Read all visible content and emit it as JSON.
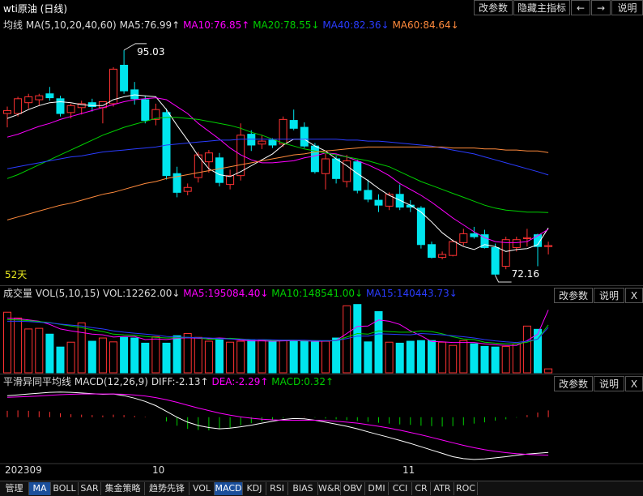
{
  "header": {
    "title": "wti原油 (日线)",
    "buttons": {
      "params": "改参数",
      "hide_indicator": "隐藏主指标",
      "left": "←",
      "right": "→",
      "help": "说明"
    }
  },
  "ma_legend": {
    "name": "均线",
    "params": "MA(5,10,20,40,60)",
    "ma5": "MA5:76.99↑",
    "ma10": "MA10:76.85↑",
    "ma20": "MA20:78.55↓",
    "ma40": "MA40:82.36↓",
    "ma60": "MA60:84.64↓"
  },
  "vol_legend": {
    "name": "成交量",
    "params": "VOL(5,10,15)",
    "vol": "VOL:12262.00↓",
    "ma5": "MA5:195084.40↓",
    "ma10": "MA10:148541.00↓",
    "ma15": "MA15:140443.73↓",
    "buttons": {
      "params": "改参数",
      "help": "说明",
      "close": "X"
    }
  },
  "macd_legend": {
    "name": "平滑异同平均线",
    "params": "MACD(12,26,9)",
    "diff": "DIFF:-2.13↑",
    "dea": "DEA:-2.29↑",
    "macd": "MACD:0.32↑",
    "buttons": {
      "params": "改参数",
      "help": "说明",
      "close": "X"
    }
  },
  "axis": {
    "year_month": "202309",
    "m10": "10",
    "m11": "11"
  },
  "days_label": "52天",
  "colors": {
    "up": "#ff3232",
    "down": "#00e5ee",
    "ma5": "#ffffff",
    "ma10": "#ff00ff",
    "ma20": "#00d000",
    "ma40": "#2a3cff",
    "ma60": "#ff8a3c",
    "dea": "#ff00ff",
    "diff": "#ffffff"
  },
  "tabs": [
    "管理",
    "MA",
    "BOLL",
    "SAR",
    "集金策略",
    "趋势先锋",
    "VOL",
    "MACD",
    "KDJ",
    "RSI",
    "BIAS",
    "W&R",
    "OBV",
    "DMI",
    "CCI",
    "CR",
    "ATR",
    "ROC"
  ],
  "active_tabs": [
    "MA",
    "MACD"
  ],
  "chart_data": {
    "type": "candlestick",
    "title": "wti原油 (日线)",
    "price_range": [
      71.5,
      96.5
    ],
    "annotations": {
      "high": 95.03,
      "low": 72.16
    },
    "candles": [
      {
        "o": 88.6,
        "h": 89.3,
        "l": 87.2,
        "c": 88.9
      },
      {
        "o": 88.6,
        "h": 90.3,
        "l": 88.3,
        "c": 90.1
      },
      {
        "o": 89.7,
        "h": 90.6,
        "l": 89.1,
        "c": 90.3
      },
      {
        "o": 90.0,
        "h": 90.6,
        "l": 89.4,
        "c": 90.4
      },
      {
        "o": 90.6,
        "h": 91.3,
        "l": 89.9,
        "c": 90.2
      },
      {
        "o": 90.1,
        "h": 90.4,
        "l": 88.3,
        "c": 88.6
      },
      {
        "o": 88.7,
        "h": 89.6,
        "l": 88.1,
        "c": 89.4
      },
      {
        "o": 89.2,
        "h": 89.9,
        "l": 88.5,
        "c": 89.6
      },
      {
        "o": 89.7,
        "h": 90.1,
        "l": 88.8,
        "c": 89.3
      },
      {
        "o": 89.2,
        "h": 89.8,
        "l": 87.6,
        "c": 89.8
      },
      {
        "o": 89.6,
        "h": 93.3,
        "l": 89.3,
        "c": 93.1
      },
      {
        "o": 93.5,
        "h": 95.03,
        "l": 90.6,
        "c": 90.9
      },
      {
        "o": 91.0,
        "h": 91.8,
        "l": 89.5,
        "c": 90.1
      },
      {
        "o": 90.0,
        "h": 90.4,
        "l": 87.6,
        "c": 87.9
      },
      {
        "o": 88.0,
        "h": 89.6,
        "l": 87.4,
        "c": 89.0
      },
      {
        "o": 88.7,
        "h": 89.1,
        "l": 81.9,
        "c": 82.3
      },
      {
        "o": 82.5,
        "h": 83.2,
        "l": 80.1,
        "c": 80.6
      },
      {
        "o": 80.7,
        "h": 81.5,
        "l": 80.3,
        "c": 81.1
      },
      {
        "o": 82.1,
        "h": 84.7,
        "l": 81.6,
        "c": 84.4
      },
      {
        "o": 83.7,
        "h": 84.9,
        "l": 82.6,
        "c": 84.6
      },
      {
        "o": 84.1,
        "h": 84.6,
        "l": 81.2,
        "c": 81.6
      },
      {
        "o": 81.4,
        "h": 82.9,
        "l": 80.9,
        "c": 82.3
      },
      {
        "o": 82.3,
        "h": 87.6,
        "l": 81.8,
        "c": 86.4
      },
      {
        "o": 86.5,
        "h": 86.9,
        "l": 84.8,
        "c": 85.4
      },
      {
        "o": 85.5,
        "h": 86.4,
        "l": 85.0,
        "c": 85.8
      },
      {
        "o": 85.9,
        "h": 86.1,
        "l": 85.1,
        "c": 85.4
      },
      {
        "o": 85.5,
        "h": 88.3,
        "l": 85.2,
        "c": 88.0
      },
      {
        "o": 87.9,
        "h": 89.0,
        "l": 86.9,
        "c": 87.1
      },
      {
        "o": 87.2,
        "h": 87.7,
        "l": 85.1,
        "c": 85.3
      },
      {
        "o": 85.3,
        "h": 85.6,
        "l": 82.5,
        "c": 82.7
      },
      {
        "o": 82.5,
        "h": 84.5,
        "l": 80.9,
        "c": 84.0
      },
      {
        "o": 84.0,
        "h": 84.3,
        "l": 81.5,
        "c": 82.0
      },
      {
        "o": 81.7,
        "h": 84.4,
        "l": 81.1,
        "c": 83.8
      },
      {
        "o": 83.7,
        "h": 83.9,
        "l": 80.5,
        "c": 80.8
      },
      {
        "o": 80.8,
        "h": 81.9,
        "l": 79.6,
        "c": 79.9
      },
      {
        "o": 79.8,
        "h": 80.4,
        "l": 78.6,
        "c": 79.3
      },
      {
        "o": 79.2,
        "h": 80.6,
        "l": 78.8,
        "c": 80.4
      },
      {
        "o": 80.4,
        "h": 81.4,
        "l": 78.8,
        "c": 79.1
      },
      {
        "o": 79.3,
        "h": 79.8,
        "l": 78.6,
        "c": 79.1
      },
      {
        "o": 79.0,
        "h": 79.2,
        "l": 74.9,
        "c": 75.3
      },
      {
        "o": 75.3,
        "h": 75.6,
        "l": 73.9,
        "c": 74.0
      },
      {
        "o": 74.0,
        "h": 74.6,
        "l": 73.8,
        "c": 74.3
      },
      {
        "o": 74.2,
        "h": 75.8,
        "l": 74.1,
        "c": 75.6
      },
      {
        "o": 75.5,
        "h": 76.9,
        "l": 75.2,
        "c": 76.4
      },
      {
        "o": 76.4,
        "h": 77.1,
        "l": 75.9,
        "c": 76.1
      },
      {
        "o": 76.3,
        "h": 76.8,
        "l": 74.9,
        "c": 75.0
      },
      {
        "o": 75.0,
        "h": 75.4,
        "l": 72.16,
        "c": 72.3
      },
      {
        "o": 73.1,
        "h": 76.1,
        "l": 72.8,
        "c": 75.8
      },
      {
        "o": 75.0,
        "h": 76.1,
        "l": 74.6,
        "c": 75.8
      },
      {
        "o": 75.9,
        "h": 76.9,
        "l": 75.1,
        "c": 76.0
      },
      {
        "o": 76.3,
        "h": 76.4,
        "l": 73.1,
        "c": 75.1
      },
      {
        "o": 75.1,
        "h": 75.6,
        "l": 74.3,
        "c": 75.2
      }
    ],
    "ma_series": {
      "ma5": [
        88.1,
        88.5,
        89.0,
        89.4,
        89.7,
        89.8,
        89.7,
        89.5,
        89.4,
        89.4,
        90.0,
        90.3,
        90.5,
        90.4,
        90.3,
        89.0,
        87.4,
        85.9,
        84.3,
        83.0,
        82.4,
        82.2,
        82.7,
        83.3,
        83.9,
        84.5,
        85.4,
        86.0,
        86.0,
        85.3,
        84.8,
        84.0,
        83.3,
        82.5,
        81.8,
        81.0,
        80.3,
        79.8,
        79.3,
        78.6,
        77.6,
        76.5,
        75.7,
        75.1,
        74.8,
        75.3,
        75.1,
        74.6,
        74.8,
        74.9,
        75.3,
        76.99
      ],
      "ma10": [
        86.2,
        86.5,
        86.9,
        87.3,
        87.6,
        88.0,
        88.3,
        88.6,
        88.9,
        89.2,
        89.5,
        89.8,
        90.0,
        90.1,
        90.2,
        90.0,
        89.3,
        88.6,
        87.6,
        86.8,
        86.0,
        85.1,
        84.4,
        83.9,
        83.6,
        83.6,
        83.7,
        83.8,
        84.1,
        84.3,
        84.6,
        84.5,
        84.2,
        83.8,
        83.4,
        82.9,
        82.3,
        81.5,
        80.9,
        80.3,
        79.6,
        78.8,
        78.0,
        77.3,
        76.6,
        76.0,
        75.6,
        75.5,
        75.5,
        75.6,
        76.2,
        76.85
      ],
      "ma20": [
        82.0,
        82.4,
        82.9,
        83.4,
        83.9,
        84.4,
        84.9,
        85.4,
        85.9,
        86.4,
        86.8,
        87.2,
        87.5,
        87.8,
        88.1,
        88.2,
        88.2,
        88.1,
        88.0,
        87.8,
        87.6,
        87.4,
        87.1,
        86.7,
        86.4,
        86.0,
        85.6,
        85.3,
        85.0,
        84.8,
        84.6,
        84.4,
        84.2,
        84.0,
        83.8,
        83.5,
        83.2,
        82.7,
        82.2,
        81.7,
        81.3,
        80.9,
        80.5,
        80.1,
        79.7,
        79.3,
        79.0,
        78.8,
        78.7,
        78.6,
        78.6,
        78.55
      ],
      "ma40": [
        83.0,
        83.2,
        83.4,
        83.6,
        83.8,
        84.0,
        84.2,
        84.3,
        84.5,
        84.7,
        84.8,
        84.9,
        85.0,
        85.1,
        85.2,
        85.4,
        85.5,
        85.6,
        85.7,
        85.8,
        85.9,
        85.9,
        86.0,
        86.0,
        86.0,
        86.0,
        86.0,
        86.0,
        86.0,
        86.0,
        86.0,
        86.0,
        85.9,
        85.9,
        85.8,
        85.8,
        85.7,
        85.6,
        85.5,
        85.4,
        85.3,
        85.1,
        84.9,
        84.7,
        84.5,
        84.2,
        83.9,
        83.6,
        83.3,
        83.0,
        82.7,
        82.36
      ],
      "ma60": [
        77.8,
        78.1,
        78.4,
        78.7,
        79.0,
        79.3,
        79.5,
        79.8,
        80.1,
        80.4,
        80.6,
        80.9,
        81.2,
        81.5,
        81.7,
        82.0,
        82.2,
        82.4,
        82.6,
        82.8,
        83.0,
        83.2,
        83.4,
        83.6,
        83.8,
        84.0,
        84.2,
        84.4,
        84.5,
        84.7,
        84.8,
        84.9,
        85.0,
        85.1,
        85.2,
        85.2,
        85.2,
        85.2,
        85.2,
        85.2,
        85.2,
        85.2,
        85.1,
        85.1,
        85.1,
        85.0,
        85.0,
        84.9,
        84.9,
        84.8,
        84.8,
        84.64
      ]
    },
    "volume": [
      188000,
      170000,
      136000,
      138000,
      120000,
      80000,
      95000,
      155000,
      98000,
      108000,
      96000,
      110000,
      108000,
      92000,
      112000,
      92000,
      115000,
      122000,
      110000,
      98000,
      102000,
      95000,
      98000,
      100000,
      100000,
      98000,
      100000,
      98000,
      100000,
      96000,
      98000,
      108000,
      208000,
      212000,
      96000,
      190000,
      95000,
      92000,
      98000,
      100000,
      100000,
      95000,
      85000,
      100000,
      90000,
      82000,
      80000,
      82000,
      90000,
      145000,
      135000,
      12262
    ],
    "vol_ma": {
      "ma5": [
        170000,
        168000,
        164000,
        160000,
        150000,
        136000,
        130000,
        125000,
        120000,
        118000,
        111000,
        113000,
        113000,
        103000,
        105000,
        103000,
        107000,
        109000,
        107000,
        106000,
        108000,
        106000,
        101000,
        99000,
        99000,
        98000,
        99000,
        100000,
        99000,
        98000,
        98000,
        100000,
        122000,
        144000,
        145000,
        164000,
        160000,
        150000,
        130000,
        115000,
        97000,
        96000,
        94000,
        94000,
        94000,
        90000,
        87000,
        85000,
        85000,
        100000,
        120000,
        195084
      ],
      "ma10": [
        165000,
        164000,
        162000,
        159000,
        156000,
        150000,
        145000,
        140000,
        134000,
        128000,
        120000,
        118000,
        117000,
        113000,
        110000,
        108000,
        109000,
        110000,
        109000,
        104000,
        105000,
        107000,
        105000,
        103000,
        103000,
        100000,
        101000,
        101000,
        100000,
        100000,
        99000,
        100000,
        111000,
        122000,
        120000,
        130000,
        128000,
        126000,
        126000,
        130000,
        128000,
        121000,
        112000,
        105000,
        103000,
        95000,
        92000,
        90000,
        90000,
        95000,
        105000,
        148541
      ],
      "ma15": [
        160000,
        160000,
        159000,
        157000,
        155000,
        151000,
        148000,
        145000,
        140000,
        136000,
        130000,
        126000,
        123000,
        120000,
        117000,
        113000,
        111000,
        110000,
        109000,
        108000,
        106000,
        105000,
        104000,
        103000,
        103000,
        102000,
        101000,
        101000,
        101000,
        100000,
        100000,
        100000,
        106000,
        114000,
        114000,
        121000,
        120000,
        119000,
        118000,
        122000,
        120000,
        118000,
        115000,
        112000,
        108000,
        103000,
        99000,
        96000,
        94000,
        98000,
        104000,
        140443
      ]
    },
    "macd": {
      "hist": [
        0.3,
        0.32,
        0.3,
        0.28,
        0.25,
        0.18,
        0.14,
        0.12,
        0.1,
        0.08,
        0.12,
        0.1,
        0.06,
        0.02,
        0.0,
        -0.2,
        -0.4,
        -0.55,
        -0.6,
        -0.62,
        -0.56,
        -0.5,
        -0.38,
        -0.28,
        -0.2,
        -0.12,
        -0.04,
        0.0,
        0.02,
        -0.02,
        -0.06,
        -0.1,
        -0.14,
        -0.18,
        -0.22,
        -0.26,
        -0.3,
        -0.34,
        -0.36,
        -0.4,
        -0.42,
        -0.44,
        -0.42,
        -0.38,
        -0.3,
        -0.24,
        -0.16,
        -0.1,
        -0.02,
        0.1,
        0.22,
        0.32
      ],
      "diff": [
        1.3,
        1.35,
        1.4,
        1.45,
        1.5,
        1.52,
        1.5,
        1.46,
        1.42,
        1.38,
        1.4,
        1.3,
        1.15,
        0.95,
        0.7,
        0.35,
        0.0,
        -0.3,
        -0.5,
        -0.62,
        -0.7,
        -0.66,
        -0.58,
        -0.48,
        -0.36,
        -0.24,
        -0.14,
        -0.08,
        -0.1,
        -0.18,
        -0.3,
        -0.42,
        -0.55,
        -0.7,
        -0.88,
        -1.05,
        -1.22,
        -1.4,
        -1.58,
        -1.78,
        -1.98,
        -2.18,
        -2.38,
        -2.5,
        -2.55,
        -2.52,
        -2.45,
        -2.38,
        -2.3,
        -2.22,
        -2.17,
        -2.13
      ],
      "dea": [
        1.2,
        1.22,
        1.25,
        1.28,
        1.32,
        1.36,
        1.38,
        1.4,
        1.4,
        1.4,
        1.4,
        1.38,
        1.34,
        1.28,
        1.18,
        1.05,
        0.9,
        0.72,
        0.55,
        0.4,
        0.25,
        0.12,
        0.02,
        -0.06,
        -0.12,
        -0.16,
        -0.18,
        -0.18,
        -0.18,
        -0.18,
        -0.2,
        -0.24,
        -0.3,
        -0.36,
        -0.45,
        -0.55,
        -0.66,
        -0.78,
        -0.92,
        -1.06,
        -1.22,
        -1.38,
        -1.54,
        -1.7,
        -1.84,
        -1.96,
        -2.06,
        -2.14,
        -2.2,
        -2.24,
        -2.27,
        -2.29
      ]
    }
  }
}
